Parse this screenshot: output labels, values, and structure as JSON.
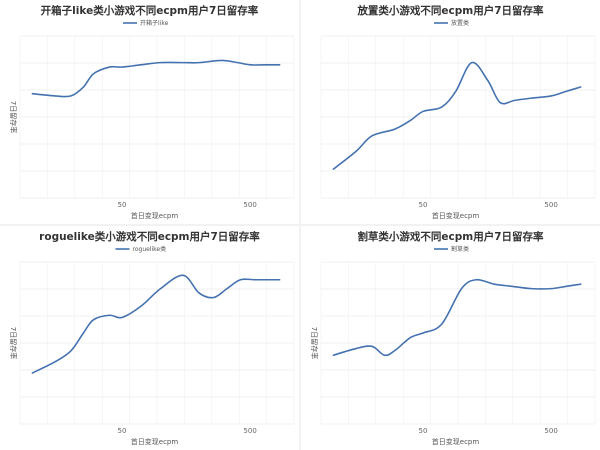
{
  "chart_data": [
    {
      "type": "line",
      "title": "开箱子like类小游戏不同ecpm用户7日留存率",
      "xlabel": "首日变现ecpm",
      "ylabel": "7日留存率",
      "x_ticks": [
        "50",
        "500"
      ],
      "series": [
        {
          "name": "开箱子like",
          "color": "#4472b0",
          "x": [
            10,
            15,
            20,
            25,
            30,
            40,
            50,
            70,
            100,
            150,
            200,
            300,
            400,
            500,
            650,
            850
          ],
          "y": [
            0.52,
            0.51,
            0.51,
            0.55,
            0.61,
            0.64,
            0.64,
            0.65,
            0.66,
            0.66,
            0.66,
            0.67,
            0.66,
            0.65,
            0.65,
            0.65
          ]
        }
      ]
    },
    {
      "type": "line",
      "title": "放置类小游戏不同ecpm用户7日留存率",
      "xlabel": "首日变现ecpm",
      "ylabel": "",
      "x_ticks": [
        "50",
        "500"
      ],
      "series": [
        {
          "name": "放置类",
          "color": "#4472b0",
          "x": [
            10,
            15,
            20,
            30,
            40,
            50,
            70,
            90,
            120,
            160,
            200,
            260,
            350,
            500,
            650,
            850
          ],
          "y": [
            0.18,
            0.26,
            0.33,
            0.36,
            0.4,
            0.44,
            0.46,
            0.53,
            0.66,
            0.58,
            0.48,
            0.49,
            0.5,
            0.51,
            0.53,
            0.55
          ]
        }
      ]
    },
    {
      "type": "line",
      "title": "roguelike类小游戏不同ecpm用户7日留存率",
      "xlabel": "首日变现ecpm",
      "ylabel": "7日留存率",
      "x_ticks": [
        "50",
        "500"
      ],
      "series": [
        {
          "name": "roguelike类",
          "color": "#4472b0",
          "x": [
            10,
            15,
            20,
            25,
            30,
            40,
            50,
            70,
            100,
            150,
            200,
            260,
            330,
            420,
            550,
            850
          ],
          "y": [
            0.28,
            0.33,
            0.38,
            0.46,
            0.52,
            0.54,
            0.53,
            0.58,
            0.66,
            0.72,
            0.64,
            0.62,
            0.66,
            0.7,
            0.7,
            0.7
          ]
        }
      ]
    },
    {
      "type": "line",
      "title": "割草类小游戏不同ecpm用户7日留存率",
      "xlabel": "首日变现ecpm",
      "ylabel": "7日留存率",
      "x_ticks": [
        "50",
        "500"
      ],
      "series": [
        {
          "name": "割草类",
          "color": "#4472b0",
          "x": [
            10,
            15,
            20,
            25,
            30,
            40,
            50,
            70,
            100,
            130,
            180,
            250,
            350,
            500,
            650,
            850
          ],
          "y": [
            0.36,
            0.39,
            0.4,
            0.36,
            0.38,
            0.44,
            0.46,
            0.5,
            0.66,
            0.7,
            0.68,
            0.67,
            0.66,
            0.66,
            0.67,
            0.68
          ]
        }
      ]
    }
  ]
}
